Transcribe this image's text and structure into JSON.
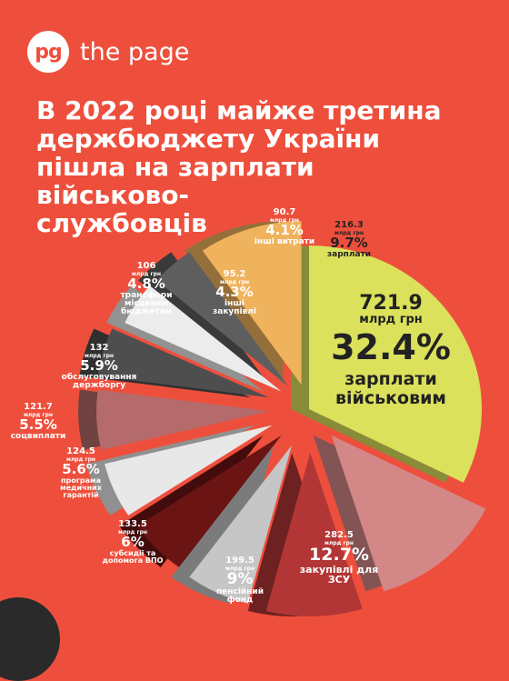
{
  "brand": {
    "mark": "pg",
    "name": "the page"
  },
  "headline": [
    "В 2022 році майже третина",
    "держбюджету України",
    "пішла на зарплати",
    "військово-",
    "службовців"
  ],
  "chart_data": {
    "type": "pie",
    "unit": "млрд грн",
    "slices": [
      {
        "amount": "721.9",
        "value": 32.4,
        "label": "32.4%",
        "name": "зарплати військовим"
      },
      {
        "amount": "282.5",
        "value": 12.7,
        "label": "12.7%",
        "name": "закупівлі для ЗСУ"
      },
      {
        "amount": "199.5",
        "value": 9.0,
        "label": "9%",
        "name": "пенсійний фонд"
      },
      {
        "amount": "133.5",
        "value": 6.0,
        "label": "6%",
        "name": "субсидії та допомога ВПО"
      },
      {
        "amount": "124.5",
        "value": 5.6,
        "label": "5.6%",
        "name": "програма медичних гарантій"
      },
      {
        "amount": "121.7",
        "value": 5.5,
        "label": "5.5%",
        "name": "соцвиплати"
      },
      {
        "amount": "132",
        "value": 5.9,
        "label": "5.9%",
        "name": "обслуговування держборгу"
      },
      {
        "amount": "106",
        "value": 4.8,
        "label": "4.8%",
        "name": "трансфери місцевим бюджетам"
      },
      {
        "amount": "95.2",
        "value": 4.3,
        "label": "4.3%",
        "name": "інші закупівлі"
      },
      {
        "amount": "90.7",
        "value": 4.1,
        "label": "4.1%",
        "name": "інші витрати"
      },
      {
        "amount": "216.3",
        "value": 9.7,
        "label": "9.7%",
        "name": "зарплати"
      }
    ],
    "colors": [
      "#dbe15b",
      "#d48787",
      "#b23636",
      "#c6c6c6",
      "#6a1414",
      "#e8e8e8",
      "#b56b6b",
      "#4e4e4e",
      "#ececec",
      "#5e5e5e",
      "#f0b35d"
    ]
  }
}
